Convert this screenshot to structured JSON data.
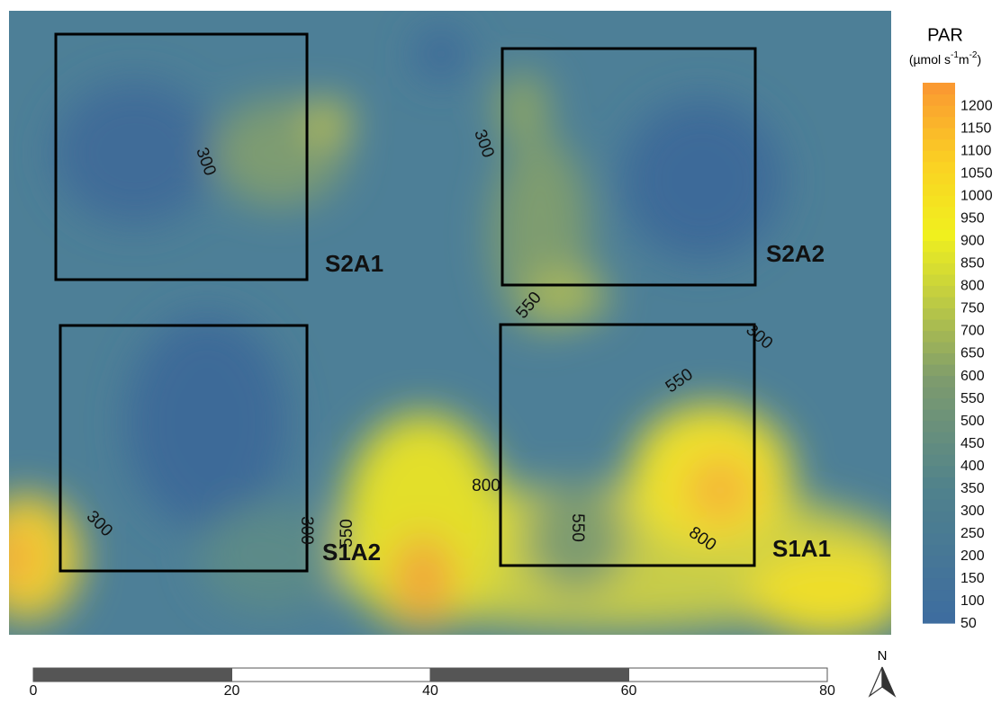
{
  "legend": {
    "title": "PAR",
    "unit": [
      "(µmol s",
      "-1",
      "m",
      "-2",
      ")"
    ],
    "range": [
      50,
      1250
    ],
    "ticks": [
      50,
      100,
      150,
      200,
      250,
      300,
      350,
      400,
      450,
      500,
      550,
      600,
      650,
      700,
      750,
      800,
      850,
      900,
      950,
      1000,
      1050,
      1100,
      1150,
      1200
    ]
  },
  "plots": [
    "S2A1",
    "S2A2",
    "S1A2",
    "S1A1"
  ],
  "contour_labels": [
    "300",
    "300",
    "550",
    "300",
    "550",
    "800",
    "550",
    "800",
    "300",
    "300",
    "550"
  ],
  "scale_bar": {
    "range": [
      0,
      80
    ],
    "ticks": [
      0,
      20,
      40,
      60,
      80
    ]
  },
  "north": "N"
}
